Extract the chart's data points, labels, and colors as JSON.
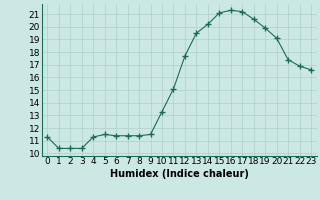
{
  "x": [
    0,
    1,
    2,
    3,
    4,
    5,
    6,
    7,
    8,
    9,
    10,
    11,
    12,
    13,
    14,
    15,
    16,
    17,
    18,
    19,
    20,
    21,
    22,
    23
  ],
  "y": [
    11.3,
    10.4,
    10.4,
    10.4,
    11.3,
    11.5,
    11.4,
    11.4,
    11.4,
    11.5,
    13.3,
    15.1,
    17.7,
    19.5,
    20.2,
    21.1,
    21.3,
    21.2,
    20.6,
    19.9,
    19.1,
    17.4,
    16.9,
    16.6
  ],
  "line_color": "#1a6b5a",
  "marker": "+",
  "marker_size": 4.0,
  "bg_color": "#cce8e4",
  "grid_color": "#b0cfc9",
  "xlabel": "Humidex (Indice chaleur)",
  "xlim": [
    -0.5,
    23.5
  ],
  "ylim": [
    9.8,
    21.8
  ],
  "yticks": [
    10,
    11,
    12,
    13,
    14,
    15,
    16,
    17,
    18,
    19,
    20,
    21
  ],
  "xticks": [
    0,
    1,
    2,
    3,
    4,
    5,
    6,
    7,
    8,
    9,
    10,
    11,
    12,
    13,
    14,
    15,
    16,
    17,
    18,
    19,
    20,
    21,
    22,
    23
  ],
  "font_size": 6.5
}
